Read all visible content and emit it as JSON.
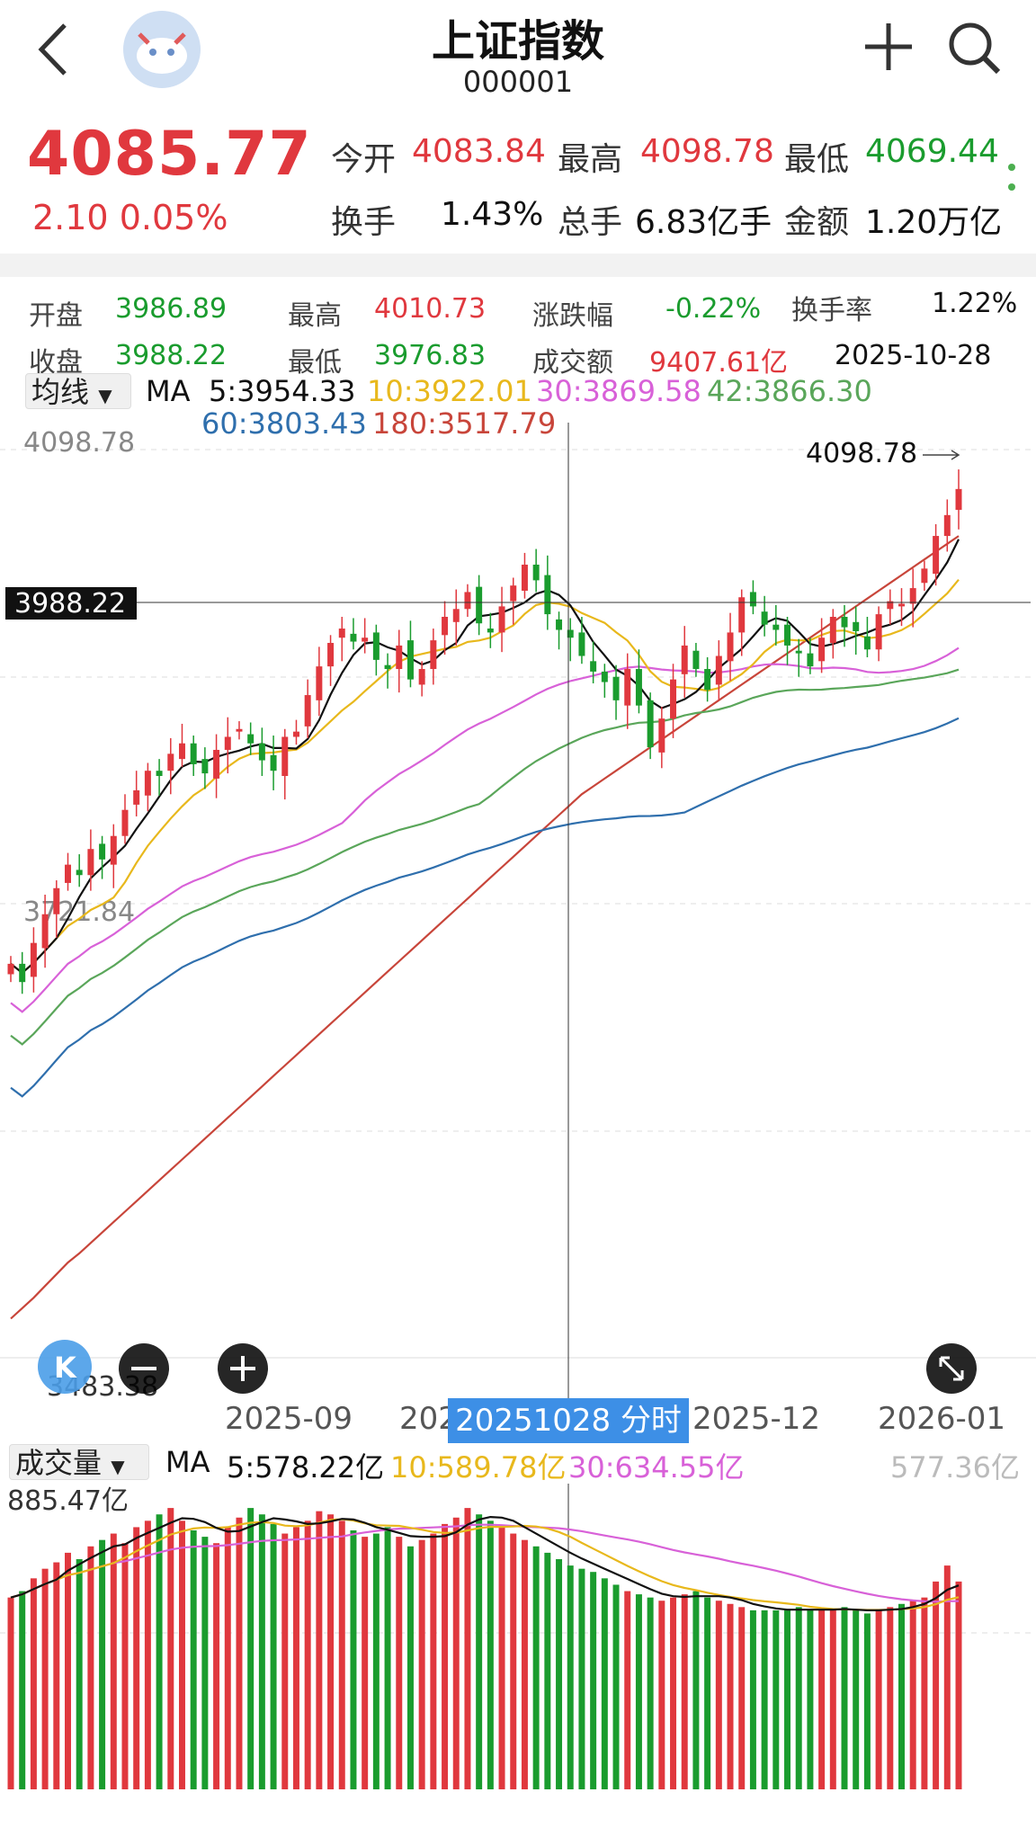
{
  "header": {
    "title": "上证指数",
    "code": "000001"
  },
  "quote": {
    "price": "4085.77",
    "change": "2.10",
    "change_pct": "0.05%",
    "open_label": "今开",
    "open": "4083.84",
    "high_label": "最高",
    "high": "4098.78",
    "low_label": "最低",
    "low": "4069.44",
    "turnover_rate_label": "换手",
    "turnover_rate": "1.43%",
    "volume_label": "总手",
    "volume": "6.83亿手",
    "amount_label": "金额",
    "amount": "1.20万亿"
  },
  "day_info": {
    "open_label": "开盘",
    "open": "3986.89",
    "high_label": "最高",
    "high": "4010.73",
    "change_label": "涨跌幅",
    "change": "-0.22%",
    "turnover_label": "换手率",
    "turnover": "1.22%",
    "close_label": "收盘",
    "close": "3988.22",
    "low_label": "最低",
    "low": "3976.83",
    "amount_label": "成交额",
    "amount": "9407.61亿",
    "date": "2025-10-28"
  },
  "ma_legend": {
    "selector": "均线",
    "ma": "MA",
    "ma5": "5:3954.33",
    "ma10": "10:3922.01",
    "ma30": "30:3869.58",
    "ma42": "42:3866.30",
    "ma60": "60:3803.43",
    "ma180": "180:3517.79"
  },
  "vol_legend": {
    "selector": "成交量",
    "ma": "MA",
    "ma5": "5:578.22亿",
    "ma10": "10:589.78亿",
    "ma30": "30:634.55亿",
    "current": "577.36亿"
  },
  "colors": {
    "up": "#e0383e",
    "down": "#1a9c2e",
    "ma5": "#111111",
    "ma10": "#e8b81c",
    "ma30": "#d861d8",
    "ma42": "#5aa65a",
    "ma60": "#2f6fad",
    "ma180": "#c8453a"
  },
  "chart_data": {
    "type": "candlestick",
    "y_labels": {
      "top": "4098.78",
      "mid": "3721.84",
      "bottom": "3483.38"
    },
    "crosshair_value": "3988.22",
    "crosshair_date": "20251028",
    "crosshair_link": "分时 >",
    "max_annotation": "4098.78",
    "x_ticks": [
      "2025-09",
      "202",
      "2025-12",
      "2026-01"
    ],
    "ylim": [
      3420,
      4130
    ],
    "closes": [
      3722,
      3708,
      3738,
      3760,
      3780,
      3798,
      3790,
      3810,
      3802,
      3820,
      3840,
      3855,
      3870,
      3866,
      3883,
      3891,
      3875,
      3868,
      3886,
      3896,
      3902,
      3891,
      3878,
      3870,
      3896,
      3900,
      3928,
      3950,
      3968,
      3979,
      3969,
      3972,
      3955,
      3948,
      3966,
      3940,
      3948,
      3970,
      3988,
      3994,
      4007,
      3983,
      3976,
      3996,
      4012,
      4028,
      4016,
      3990,
      3978,
      3972,
      3958,
      3946,
      3938,
      3924,
      3948,
      3920,
      3888,
      3910,
      3940,
      3966,
      3948,
      3932,
      3958,
      3976,
      4003,
      3996,
      3982,
      3978,
      3966,
      3960,
      3950,
      3972,
      3988,
      3980,
      3977,
      3963,
      3990,
      4000,
      3998,
      4010,
      4025,
      4050,
      4066,
      4086
    ],
    "volumes": [
      600,
      620,
      660,
      690,
      710,
      740,
      720,
      760,
      780,
      800,
      770,
      820,
      840,
      860,
      880,
      840,
      810,
      790,
      770,
      820,
      850,
      880,
      860,
      830,
      800,
      820,
      840,
      870,
      860,
      840,
      810,
      790,
      800,
      820,
      790,
      760,
      780,
      800,
      830,
      850,
      880,
      860,
      840,
      820,
      800,
      780,
      760,
      740,
      720,
      700,
      690,
      680,
      660,
      640,
      620,
      610,
      600,
      590,
      600,
      610,
      620,
      600,
      590,
      580,
      570,
      560,
      560,
      560,
      560,
      570,
      560,
      560,
      560,
      570,
      560,
      550,
      560,
      570,
      580,
      590,
      600,
      650,
      700,
      650
    ],
    "ma180": [
      3450,
      3458,
      3466,
      3475,
      3484,
      3493,
      3500,
      3508,
      3516,
      3524,
      3532,
      3540,
      3548,
      3556,
      3564,
      3572,
      3580,
      3588,
      3596,
      3604,
      3612,
      3620,
      3628,
      3636,
      3644,
      3652,
      3660,
      3668,
      3676,
      3684,
      3692,
      3700,
      3708,
      3716,
      3724,
      3732,
      3740,
      3748,
      3756,
      3764,
      3772,
      3780,
      3788,
      3796,
      3804,
      3812,
      3820,
      3828,
      3836,
      3844,
      3852,
      3858,
      3864,
      3870,
      3876,
      3882,
      3888,
      3894,
      3900,
      3906,
      3912,
      3918,
      3924,
      3930,
      3936,
      3942,
      3948,
      3954,
      3960,
      3966,
      3972,
      3978,
      3984,
      3990,
      3996,
      4002,
      4008,
      4014,
      4020,
      4026,
      4032,
      4038,
      4044,
      4050
    ]
  }
}
